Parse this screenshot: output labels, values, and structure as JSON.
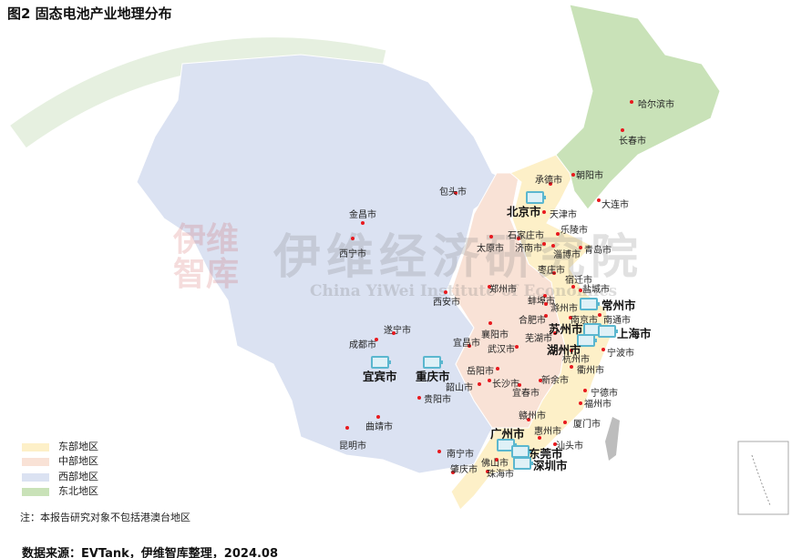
{
  "title": "图2 固态电池产业地理分布",
  "legend": [
    {
      "label": "东部地区",
      "color": "#fdf0c8"
    },
    {
      "label": "中部地区",
      "color": "#f9e2d6"
    },
    {
      "label": "西部地区",
      "color": "#dbe2f2"
    },
    {
      "label": "东北地区",
      "color": "#c9e2b8"
    }
  ],
  "note": "注：本报告研究对象不包括港澳台地区",
  "source": "数据来源：EVTank，伊维智库整理，2024.08",
  "watermark": {
    "cn": "伊维经济研究院",
    "en": "China YiWei Institute of Economics",
    "logo": "伊维智库",
    "brand": "EVTank"
  },
  "cities": [
    "哈尔滨市",
    "长春市",
    "朝阳市",
    "承德市",
    "大连市",
    "包头市",
    "天津市",
    "金昌市",
    "乐陵市",
    "石家庄市",
    "太原市",
    "济南市",
    "淄博市",
    "青岛市",
    "西宁市",
    "枣庄市",
    "宿迁市",
    "盐城市",
    "郑州市",
    "西安市",
    "蚌埠市",
    "滁州市",
    "合肥市",
    "南京市",
    "南通市",
    "襄阳市",
    "遂宁市",
    "成都市",
    "宜昌市",
    "芜湖市",
    "武汉市",
    "杭州市",
    "宁波市",
    "衢州市",
    "岳阳市",
    "长沙市",
    "新余市",
    "韶山市",
    "宜春市",
    "贵阳市",
    "宁德市",
    "福州市",
    "赣州市",
    "厦门市",
    "曲靖市",
    "惠州市",
    "昆明市",
    "汕头市",
    "南宁市",
    "佛山市",
    "肇庆市",
    "珠海市"
  ],
  "major_cities": [
    "北京市",
    "常州市",
    "苏州市",
    "上海市",
    "湖州市",
    "宜宾市",
    "重庆市",
    "广州市",
    "东莞市",
    "深圳市"
  ],
  "icons": {
    "city_marker": "red-dot",
    "major_marker": "battery-icon"
  }
}
